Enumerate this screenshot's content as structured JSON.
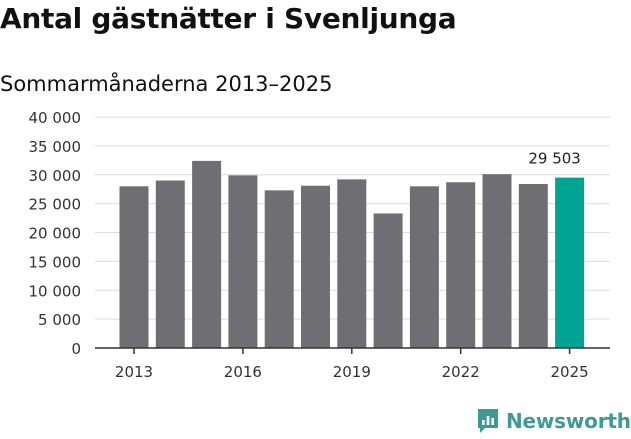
{
  "chart_data": {
    "type": "bar",
    "title": "Antal gästnätter i Svenljunga",
    "subtitle": "Sommarmånaderna 2013–2025",
    "xlabel": "",
    "ylabel": "",
    "categories": [
      "2013",
      "2014",
      "2015",
      "2016",
      "2017",
      "2018",
      "2019",
      "2020",
      "2021",
      "2022",
      "2023",
      "2024",
      "2025"
    ],
    "values": [
      28000,
      29000,
      32400,
      29900,
      27300,
      28100,
      29200,
      23300,
      28000,
      28700,
      30100,
      28400,
      29503
    ],
    "ylim": [
      0,
      40000
    ],
    "yticks": [
      0,
      5000,
      10000,
      15000,
      20000,
      25000,
      30000,
      35000,
      40000
    ],
    "ytick_labels": [
      "0",
      "5 000",
      "10 000",
      "15 000",
      "20 000",
      "25 000",
      "30 000",
      "35 000",
      "40 000"
    ],
    "xtick_labels": [
      "2013",
      "2016",
      "2019",
      "2022",
      "2025"
    ],
    "grid": true,
    "bar_color": "#6f6e73",
    "highlight_color": "#00a394",
    "highlight_index": 12,
    "data_labels": [
      {
        "index": 12,
        "text": "29 503"
      }
    ]
  },
  "brand": {
    "name": "Newsworthy",
    "icon": "newsworthy-logo-icon",
    "color": "#3f9a96"
  }
}
